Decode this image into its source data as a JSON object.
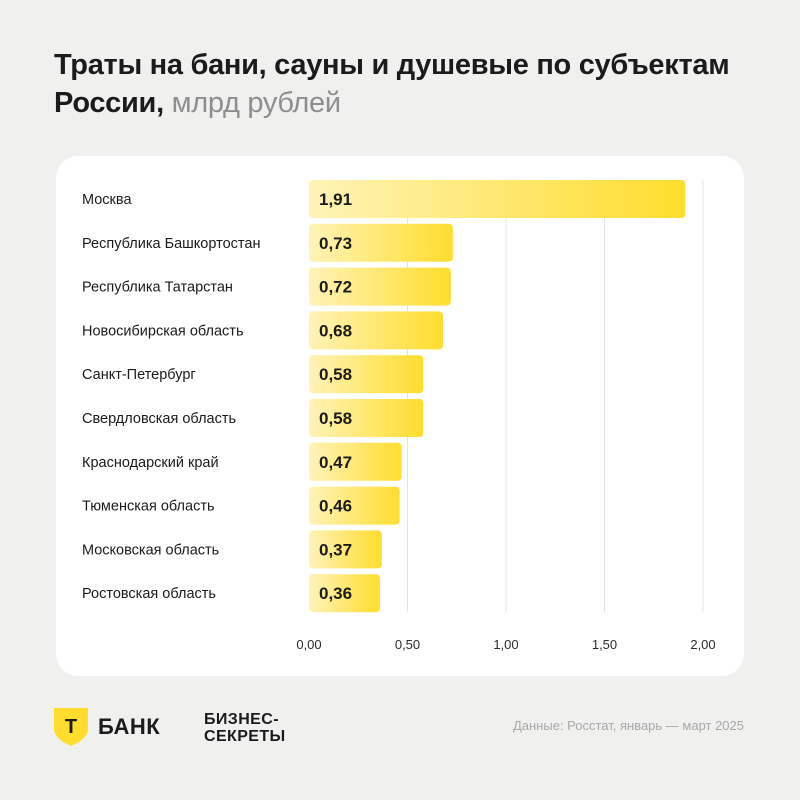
{
  "header": {
    "title_main": "Траты на бани, сауны и душевые по субъектам России,",
    "title_unit": "млрд рублей"
  },
  "footer": {
    "brand_tbank": "БАНК",
    "brand_tbank_letter": "Т",
    "brand_bs_line1": "БИЗНЕС-",
    "brand_bs_line2": "СЕКРЕТЫ",
    "source": "Данные: Росстат, январь — март 2025"
  },
  "colors": {
    "bar_start": "#fff3b8",
    "bar_end": "#ffdd2d",
    "logo_yellow": "#ffdd2d",
    "grid": "#e4e4e4"
  },
  "chart_data": {
    "type": "bar",
    "orientation": "horizontal",
    "title": "Траты на бани, сауны и душевые по субъектам России, млрд рублей",
    "xlabel": "",
    "ylabel": "",
    "xlim": [
      0,
      2
    ],
    "xticks": [
      0,
      0.5,
      1,
      1.5,
      2
    ],
    "xtick_labels": [
      "0,00",
      "0,50",
      "1,00",
      "1,50",
      "2,00"
    ],
    "grid": true,
    "categories": [
      "Москва",
      "Республика Башкортостан",
      "Республика Татарстан",
      "Новосибирская область",
      "Санкт-Петербург",
      "Свердловская область",
      "Краснодарский край",
      "Тюменская область",
      "Московская область",
      "Ростовская область"
    ],
    "values": [
      1.91,
      0.73,
      0.72,
      0.68,
      0.58,
      0.58,
      0.47,
      0.46,
      0.37,
      0.36
    ],
    "value_labels": [
      "1,91",
      "0,73",
      "0,72",
      "0,68",
      "0,58",
      "0,58",
      "0,47",
      "0,46",
      "0,37",
      "0,36"
    ]
  }
}
